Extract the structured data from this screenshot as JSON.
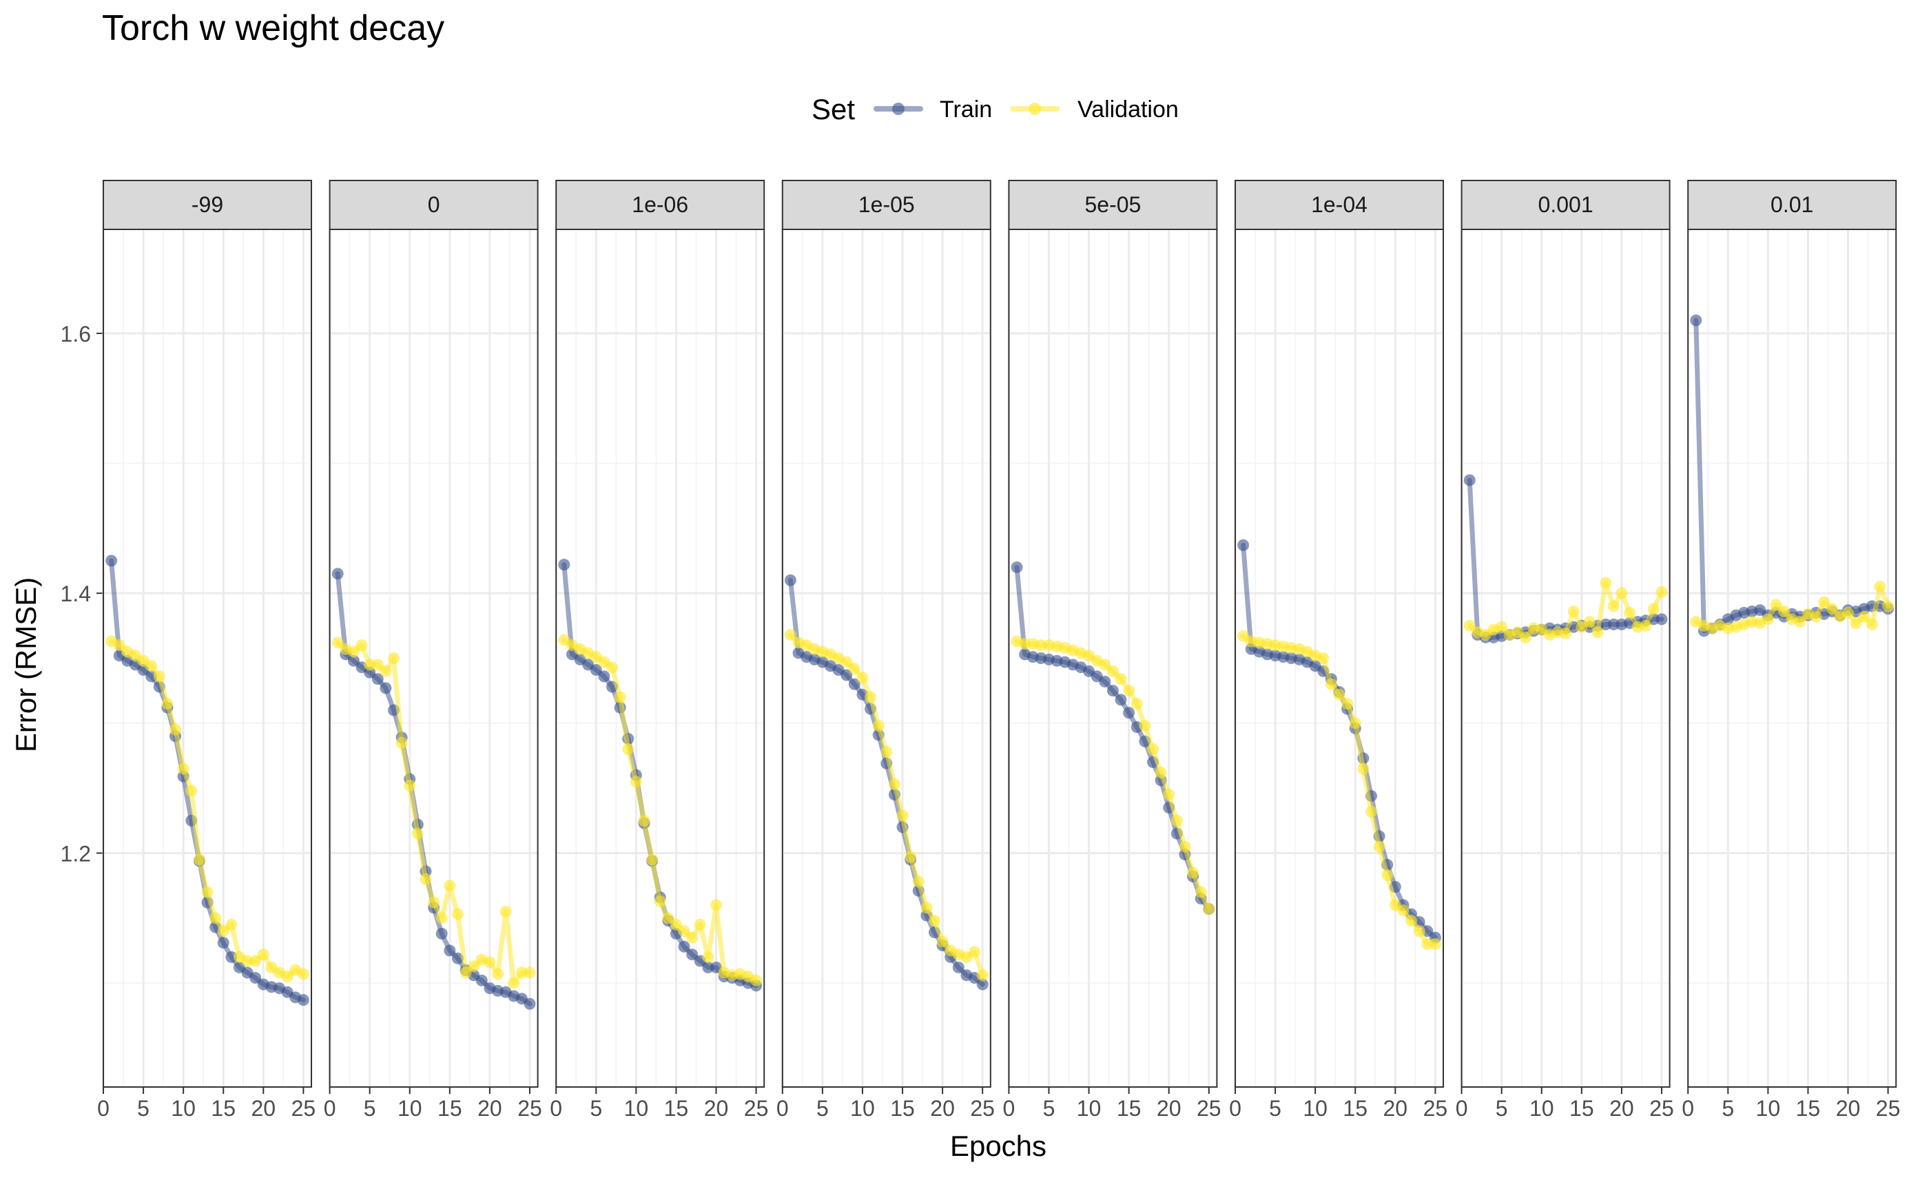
{
  "chart_data": {
    "type": "line",
    "title": "Torch w weight decay",
    "xlabel": "Epochs",
    "ylabel": "Error (RMSE)",
    "xlim": [
      0,
      26
    ],
    "ylim": [
      1.02,
      1.68
    ],
    "x_ticks": [
      0,
      5,
      10,
      15,
      20,
      25
    ],
    "y_ticks": [
      1.2,
      1.4,
      1.6
    ],
    "grid": true,
    "legend": {
      "title": "Set",
      "position": "top",
      "entries": [
        {
          "name": "Train",
          "color": "#3b528b"
        },
        {
          "name": "Validation",
          "color": "#fde725"
        }
      ]
    },
    "x": [
      1,
      2,
      3,
      4,
      5,
      6,
      7,
      8,
      9,
      10,
      11,
      12,
      13,
      14,
      15,
      16,
      17,
      18,
      19,
      20,
      21,
      22,
      23,
      24,
      25
    ],
    "facets": [
      {
        "label": "-99",
        "series": [
          {
            "name": "Train",
            "values": [
              1.425,
              1.352,
              1.348,
              1.345,
              1.341,
              1.336,
              1.328,
              1.312,
              1.29,
              1.259,
              1.225,
              1.194,
              1.162,
              1.143,
              1.131,
              1.12,
              1.112,
              1.108,
              1.104,
              1.099,
              1.097,
              1.096,
              1.093,
              1.089,
              1.087
            ]
          },
          {
            "name": "Validation",
            "values": [
              1.363,
              1.36,
              1.355,
              1.352,
              1.348,
              1.344,
              1.336,
              1.315,
              1.295,
              1.265,
              1.248,
              1.195,
              1.17,
              1.15,
              1.14,
              1.145,
              1.12,
              1.117,
              1.117,
              1.122,
              1.112,
              1.108,
              1.105,
              1.11,
              1.107
            ]
          }
        ]
      },
      {
        "label": "0",
        "series": [
          {
            "name": "Train",
            "values": [
              1.415,
              1.353,
              1.348,
              1.343,
              1.339,
              1.334,
              1.327,
              1.31,
              1.289,
              1.257,
              1.222,
              1.186,
              1.158,
              1.138,
              1.125,
              1.119,
              1.11,
              1.106,
              1.102,
              1.096,
              1.094,
              1.093,
              1.09,
              1.088,
              1.084
            ]
          },
          {
            "name": "Validation",
            "values": [
              1.362,
              1.357,
              1.355,
              1.36,
              1.345,
              1.345,
              1.34,
              1.35,
              1.285,
              1.252,
              1.215,
              1.18,
              1.162,
              1.15,
              1.175,
              1.153,
              1.108,
              1.113,
              1.118,
              1.116,
              1.107,
              1.155,
              1.1,
              1.108,
              1.108
            ]
          }
        ]
      },
      {
        "label": "1e-06",
        "series": [
          {
            "name": "Train",
            "values": [
              1.422,
              1.353,
              1.349,
              1.345,
              1.341,
              1.336,
              1.328,
              1.312,
              1.288,
              1.26,
              1.223,
              1.194,
              1.166,
              1.148,
              1.138,
              1.128,
              1.122,
              1.117,
              1.112,
              1.112,
              1.105,
              1.104,
              1.102,
              1.1,
              1.098
            ]
          },
          {
            "name": "Validation",
            "values": [
              1.364,
              1.36,
              1.357,
              1.354,
              1.351,
              1.347,
              1.343,
              1.32,
              1.28,
              1.255,
              1.225,
              1.195,
              1.163,
              1.15,
              1.145,
              1.14,
              1.135,
              1.145,
              1.12,
              1.16,
              1.108,
              1.106,
              1.107,
              1.105,
              1.102
            ]
          }
        ]
      },
      {
        "label": "1e-05",
        "series": [
          {
            "name": "Train",
            "values": [
              1.41,
              1.354,
              1.351,
              1.349,
              1.347,
              1.344,
              1.341,
              1.337,
              1.33,
              1.322,
              1.311,
              1.291,
              1.269,
              1.245,
              1.22,
              1.195,
              1.171,
              1.152,
              1.139,
              1.129,
              1.12,
              1.112,
              1.106,
              1.104,
              1.099
            ]
          },
          {
            "name": "Validation",
            "values": [
              1.368,
              1.362,
              1.36,
              1.357,
              1.355,
              1.353,
              1.35,
              1.347,
              1.342,
              1.335,
              1.32,
              1.298,
              1.278,
              1.253,
              1.229,
              1.197,
              1.178,
              1.158,
              1.148,
              1.132,
              1.125,
              1.122,
              1.12,
              1.124,
              1.106
            ]
          }
        ]
      },
      {
        "label": "5e-05",
        "series": [
          {
            "name": "Train",
            "values": [
              1.42,
              1.353,
              1.351,
              1.35,
              1.349,
              1.348,
              1.347,
              1.345,
              1.343,
              1.34,
              1.336,
              1.332,
              1.325,
              1.318,
              1.308,
              1.297,
              1.286,
              1.27,
              1.256,
              1.235,
              1.215,
              1.199,
              1.182,
              1.165,
              1.157
            ]
          },
          {
            "name": "Validation",
            "values": [
              1.363,
              1.361,
              1.361,
              1.36,
              1.36,
              1.359,
              1.358,
              1.356,
              1.354,
              1.352,
              1.348,
              1.345,
              1.34,
              1.334,
              1.325,
              1.315,
              1.298,
              1.28,
              1.262,
              1.245,
              1.225,
              1.205,
              1.185,
              1.17,
              1.157
            ]
          }
        ]
      },
      {
        "label": "1e-04",
        "series": [
          {
            "name": "Train",
            "values": [
              1.437,
              1.357,
              1.355,
              1.353,
              1.352,
              1.351,
              1.35,
              1.349,
              1.347,
              1.344,
              1.34,
              1.334,
              1.324,
              1.311,
              1.296,
              1.273,
              1.244,
              1.213,
              1.191,
              1.174,
              1.16,
              1.153,
              1.147,
              1.14,
              1.135
            ]
          },
          {
            "name": "Validation",
            "values": [
              1.367,
              1.363,
              1.362,
              1.361,
              1.36,
              1.359,
              1.358,
              1.357,
              1.355,
              1.352,
              1.35,
              1.33,
              1.322,
              1.315,
              1.3,
              1.265,
              1.232,
              1.205,
              1.183,
              1.16,
              1.156,
              1.148,
              1.14,
              1.13,
              1.13
            ]
          }
        ]
      },
      {
        "label": "0.001",
        "series": [
          {
            "name": "Train",
            "values": [
              1.487,
              1.368,
              1.366,
              1.366,
              1.367,
              1.368,
              1.369,
              1.37,
              1.371,
              1.372,
              1.373,
              1.372,
              1.373,
              1.374,
              1.375,
              1.374,
              1.375,
              1.376,
              1.376,
              1.376,
              1.377,
              1.378,
              1.379,
              1.38,
              1.38
            ]
          },
          {
            "name": "Validation",
            "values": [
              1.375,
              1.37,
              1.368,
              1.372,
              1.374,
              1.368,
              1.37,
              1.366,
              1.373,
              1.372,
              1.368,
              1.37,
              1.369,
              1.386,
              1.374,
              1.378,
              1.37,
              1.408,
              1.39,
              1.4,
              1.385,
              1.374,
              1.375,
              1.388,
              1.401
            ]
          }
        ]
      },
      {
        "label": "0.01",
        "series": [
          {
            "name": "Train",
            "values": [
              1.61,
              1.371,
              1.373,
              1.376,
              1.38,
              1.383,
              1.385,
              1.386,
              1.387,
              1.383,
              1.385,
              1.382,
              1.384,
              1.382,
              1.383,
              1.385,
              1.384,
              1.386,
              1.383,
              1.387,
              1.386,
              1.388,
              1.39,
              1.39,
              1.388
            ]
          },
          {
            "name": "Validation",
            "values": [
              1.378,
              1.375,
              1.373,
              1.375,
              1.373,
              1.374,
              1.376,
              1.378,
              1.377,
              1.38,
              1.391,
              1.386,
              1.38,
              1.378,
              1.384,
              1.382,
              1.393,
              1.388,
              1.382,
              1.385,
              1.377,
              1.382,
              1.376,
              1.405,
              1.39
            ]
          }
        ]
      }
    ]
  }
}
